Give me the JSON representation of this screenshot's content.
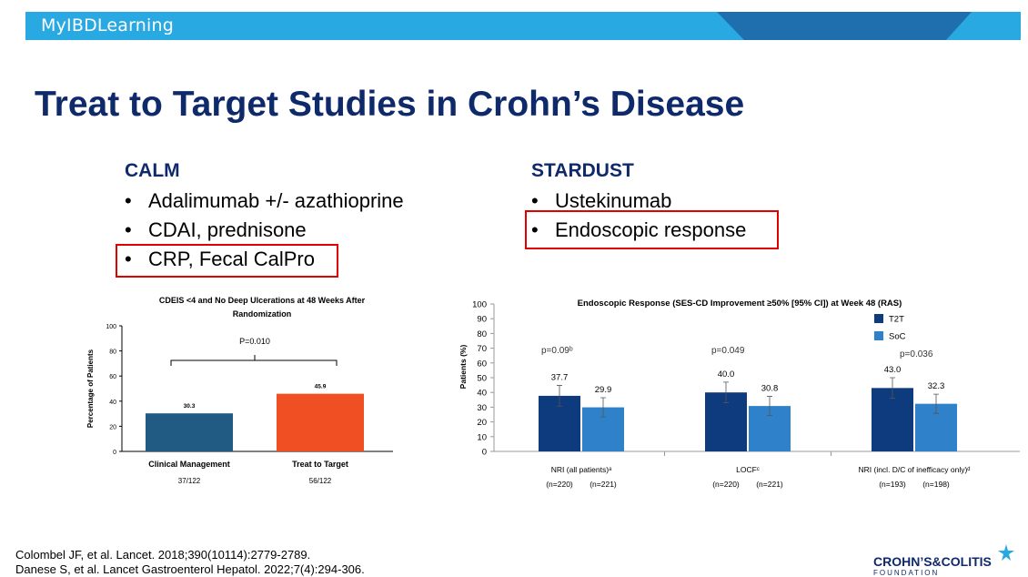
{
  "brand": {
    "left": "MyIBD",
    "right": "Learning"
  },
  "title": "Treat to Target Studies in Crohn’s Disease",
  "calm": {
    "heading": "CALM",
    "bullets": [
      "Adalimumab +/- azathioprine",
      "CDAI, prednisone",
      "CRP, Fecal CalPro"
    ]
  },
  "stardust": {
    "heading": "STARDUST",
    "bullets": [
      "Ustekinumab",
      "Endoscopic response"
    ]
  },
  "bullet_symbol": "•",
  "chart_data": [
    {
      "type": "bar",
      "title": "CDEIS <4 and No Deep Ulcerations at 48 Weeks After Randomization",
      "ylabel": "Percentage of Patients",
      "ylim": [
        0,
        100
      ],
      "yticks": [
        "0",
        "20",
        "40",
        "60",
        "80",
        "100"
      ],
      "categories": [
        "Clinical Management",
        "Treat to Target"
      ],
      "sublabels": [
        "37/122",
        "56/122"
      ],
      "values": [
        30.3,
        45.9
      ],
      "value_labels": [
        "30.3",
        "45.9"
      ],
      "colors": [
        "#215a82",
        "#f04e23"
      ],
      "annotation": "P=0.010"
    },
    {
      "type": "bar",
      "title": "Endoscopic Response (SES-CD Improvement ≥50% [95% CI]) at Week 48 (RAS)",
      "ylabel": "Patients (%)",
      "ylim": [
        0,
        100
      ],
      "yticks": [
        "0",
        "10",
        "20",
        "30",
        "40",
        "50",
        "60",
        "70",
        "80",
        "90",
        "100"
      ],
      "categories": [
        "NRI (all patients)ᵃ",
        "LOCFᶜ",
        "NRI (incl. D/C of inefficacy only)ᵈ"
      ],
      "series": [
        {
          "name": "T2T",
          "color": "#0e3a7e",
          "values": [
            37.7,
            40.0,
            43.0
          ],
          "labels": [
            "37.7",
            "40.0",
            "43.0"
          ],
          "n": [
            "(n=220)",
            "(n=220)",
            "(n=193)"
          ]
        },
        {
          "name": "SoC",
          "color": "#2f82c9",
          "values": [
            29.9,
            30.8,
            32.3
          ],
          "labels": [
            "29.9",
            "30.8",
            "32.3"
          ],
          "n": [
            "(n=221)",
            "(n=221)",
            "(n=198)"
          ]
        }
      ],
      "pvalues": [
        "p=0.09ᵇ",
        "p=0.049",
        "p=0.036"
      ],
      "legend": "top-right"
    }
  ],
  "references": [
    "Colombel JF, et al. Lancet. 2018;390(10114):2779-2789.",
    "Danese S, et al. Lancet Gastroenterol Hepatol. 2022;7(4):294-306."
  ],
  "logo": {
    "text": "CROHN’S&COLITIS",
    "sub": "FOUNDATION"
  }
}
